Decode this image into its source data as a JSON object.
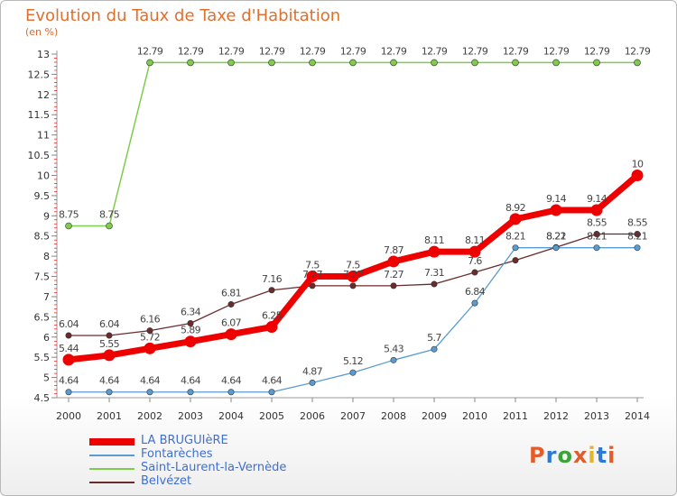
{
  "title": "Evolution du Taux de Taxe d'Habitation",
  "unit_label": "(en %)",
  "logo": {
    "text": "Proxiti",
    "colors": [
      "#e25d2b",
      "#2c7ad6",
      "#3aa339",
      "#e25d2b",
      "#e2b52b",
      "#2c7ad6",
      "#e25d2b"
    ]
  },
  "chart_data": {
    "type": "line",
    "title": "Evolution du Taux de Taxe d'Habitation",
    "ylabel": "(en %)",
    "ylim": [
      4.5,
      13
    ],
    "yticks": [
      "4.5",
      "5",
      "5.5",
      "6",
      "6.5",
      "7",
      "7.5",
      "8",
      "8.5",
      "9",
      "9.5",
      "10",
      "10.5",
      "11",
      "11.5",
      "12",
      "12.5",
      "13"
    ],
    "x": [
      "2000",
      "2001",
      "2002",
      "2003",
      "2004",
      "2005",
      "2006",
      "2007",
      "2008",
      "2009",
      "2010",
      "2011",
      "2012",
      "2013",
      "2014"
    ],
    "grid": false,
    "legend_position": "bottom-left",
    "series": [
      {
        "name": "Saint-Laurent-la-Vernède",
        "color": "#7fcc4a",
        "width": 1.5,
        "marker": 3.5,
        "values": [
          8.75,
          8.75,
          12.79,
          12.79,
          12.79,
          12.79,
          12.79,
          12.79,
          12.79,
          12.79,
          12.79,
          12.79,
          12.79,
          12.79,
          12.79
        ]
      },
      {
        "name": "Belvézet",
        "color": "#6b2b2b",
        "width": 1.3,
        "marker": 3.2,
        "values": [
          6.04,
          6.04,
          6.16,
          6.34,
          6.81,
          7.16,
          7.27,
          7.27,
          7.27,
          7.31,
          7.6,
          7.9,
          8.22,
          8.55,
          8.55
        ]
      },
      {
        "name": "Fontarèches",
        "color": "#5a9bd0",
        "width": 1.3,
        "marker": 3.2,
        "values": [
          4.64,
          4.64,
          4.64,
          4.64,
          4.64,
          4.64,
          4.87,
          5.12,
          5.43,
          5.7,
          6.84,
          8.21,
          8.21,
          8.21,
          8.21
        ]
      },
      {
        "name": "LA BRUGUIèRE",
        "color": "#ee0000",
        "width": 7,
        "marker": 6.5,
        "values": [
          5.44,
          5.55,
          5.72,
          5.89,
          6.07,
          6.25,
          7.5,
          7.5,
          7.87,
          8.11,
          8.11,
          8.92,
          9.14,
          9.14,
          10
        ]
      }
    ],
    "data_labels": [
      {
        "series": "Saint-Laurent-la-Vernède",
        "labels": [
          "8.75",
          "8.75",
          "12.79",
          "12.79",
          "12.79",
          "12.79",
          "12.79",
          "12.79",
          "12.79",
          "12.79",
          "12.79",
          "12.79",
          "12.79",
          "12.79",
          "12.79"
        ]
      },
      {
        "series": "Belvézet",
        "labels": [
          "6.04",
          "6.04",
          "6.16",
          "6.34",
          "6.81",
          "7.16",
          "7.27",
          "7.27",
          "7.27",
          "7.31",
          "7.6",
          "",
          "8.22",
          "8.55",
          "8.55"
        ]
      },
      {
        "series": "Fontarèches",
        "labels": [
          "4.64",
          "4.64",
          "4.64",
          "4.64",
          "4.64",
          "4.64",
          "4.87",
          "5.12",
          "5.43",
          "5.7",
          "6.84",
          "8.21",
          "8.21",
          "8.21",
          "8.21"
        ]
      },
      {
        "series": "LA BRUGUIèRE",
        "labels": [
          "5.44",
          "5.55",
          "5.72",
          "5.89",
          "6.07",
          "6.25",
          "7.5",
          "7.5",
          "7.87",
          "8.11",
          "8.11",
          "8.92",
          "9.14",
          "9.14",
          "10"
        ]
      }
    ],
    "legend_order": [
      "LA BRUGUIèRE",
      "Fontarèches",
      "Saint-Laurent-la-Vernède",
      "Belvézet"
    ]
  }
}
